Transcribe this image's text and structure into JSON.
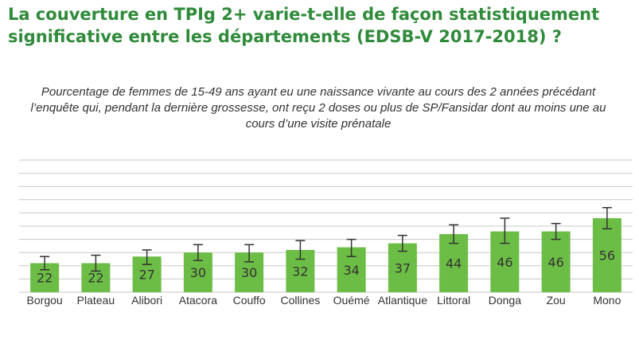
{
  "title": "La couverture en TPIg 2+ varie-t-elle de façon statistiquement significative entre les départements (EDSB-V 2017-2018) ?",
  "subtitle": "Pourcentage de femmes de 15-49 ans ayant eu une naissance vivante au cours des 2 années précédant l’enquête qui, pendant la dernière grossesse, ont reçu 2 doses ou plus de SP/Fansidar dont au moins une au cours d’une visite prénatale",
  "colors": {
    "title": "#2f8a3a",
    "bar": "#6cbd45",
    "grid": "#c8c8c8",
    "error_bar": "#333333"
  },
  "chart_data": {
    "type": "bar",
    "categories": [
      "Borgou",
      "Plateau",
      "Alibori",
      "Atacora",
      "Couffo",
      "Collines",
      "Ouémé",
      "Atlantique",
      "Littoral",
      "Donga",
      "Zou",
      "Mono"
    ],
    "values": [
      22,
      22,
      27,
      30,
      30,
      32,
      34,
      37,
      44,
      46,
      46,
      56
    ],
    "error_low": [
      17,
      16,
      21,
      24,
      23,
      25,
      27,
      31,
      37,
      37,
      40,
      48
    ],
    "error_high": [
      27,
      28,
      32,
      36,
      36,
      39,
      40,
      43,
      51,
      56,
      52,
      64
    ],
    "ylim": [
      0,
      100
    ],
    "grid": true,
    "legend": "none"
  }
}
